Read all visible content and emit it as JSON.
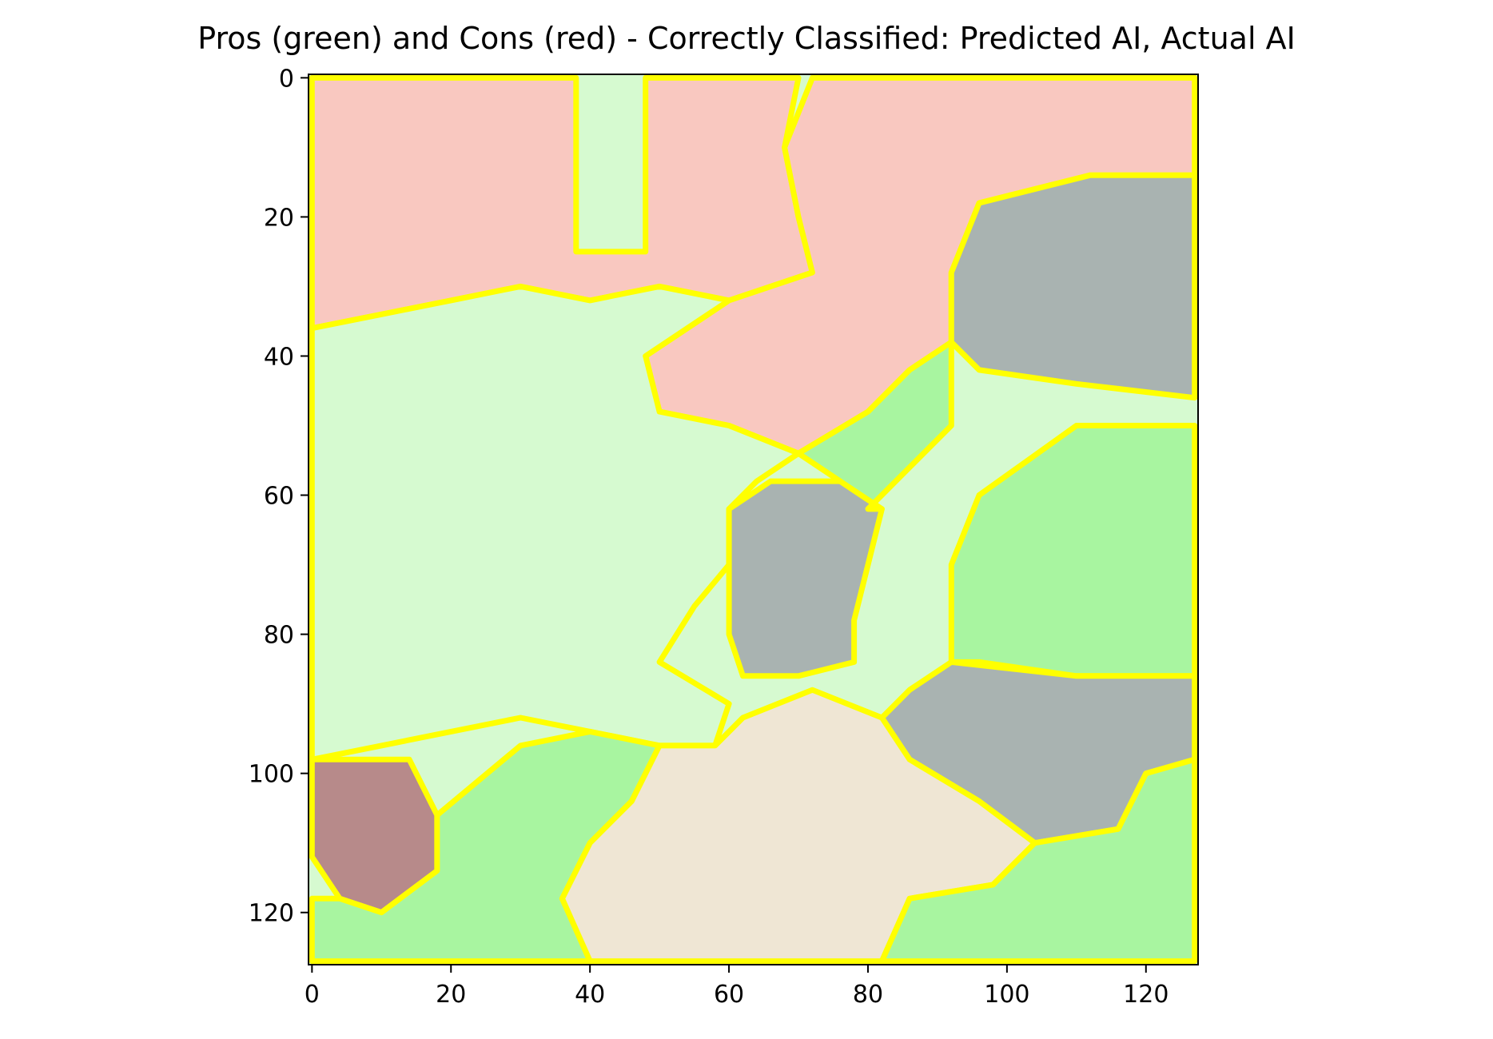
{
  "chart_data": {
    "type": "heatmap",
    "title": "Pros (green) and Cons (red) - Correctly Classified: Predicted AI, Actual AI",
    "xlabel": "",
    "ylabel": "",
    "xlim": [
      -0.5,
      127.5
    ],
    "ylim": [
      127.5,
      -0.5
    ],
    "x_ticks": [
      0,
      20,
      40,
      60,
      80,
      100,
      120
    ],
    "y_ticks": [
      0,
      20,
      40,
      60,
      80,
      100,
      120
    ],
    "grid": false,
    "colors": {
      "pros": "#a8f5a0",
      "pros_light": "#d6fad0",
      "cons": "#f9c8c0",
      "cons_light": "#fbe4d8",
      "boundary": "#ffff00",
      "gray_region": "#a9b3b1",
      "beige": "#efe6d4"
    },
    "regions": [
      {
        "label": "cons",
        "polygon": [
          [
            0,
            0
          ],
          [
            38,
            0
          ],
          [
            38,
            25
          ],
          [
            48,
            25
          ],
          [
            48,
            0
          ],
          [
            70,
            0
          ],
          [
            68,
            10
          ],
          [
            70,
            20
          ],
          [
            72,
            28
          ],
          [
            60,
            32
          ],
          [
            50,
            30
          ],
          [
            40,
            32
          ],
          [
            30,
            30
          ],
          [
            20,
            32
          ],
          [
            10,
            34
          ],
          [
            0,
            36
          ]
        ]
      },
      {
        "label": "cons",
        "polygon": [
          [
            72,
            0
          ],
          [
            127,
            0
          ],
          [
            127,
            14
          ],
          [
            112,
            14
          ],
          [
            96,
            18
          ],
          [
            92,
            28
          ],
          [
            92,
            38
          ],
          [
            86,
            42
          ],
          [
            80,
            48
          ],
          [
            70,
            54
          ],
          [
            60,
            50
          ],
          [
            50,
            48
          ],
          [
            48,
            40
          ],
          [
            54,
            36
          ],
          [
            60,
            32
          ],
          [
            72,
            28
          ],
          [
            70,
            20
          ],
          [
            68,
            10
          ]
        ]
      },
      {
        "label": "pros_light",
        "polygon": [
          [
            0,
            36
          ],
          [
            10,
            34
          ],
          [
            20,
            32
          ],
          [
            30,
            30
          ],
          [
            40,
            32
          ],
          [
            50,
            30
          ],
          [
            60,
            32
          ],
          [
            54,
            36
          ],
          [
            48,
            40
          ],
          [
            50,
            48
          ],
          [
            60,
            50
          ],
          [
            70,
            54
          ],
          [
            64,
            58
          ],
          [
            60,
            62
          ],
          [
            60,
            70
          ],
          [
            55,
            76
          ],
          [
            50,
            84
          ],
          [
            60,
            90
          ],
          [
            58,
            96
          ],
          [
            50,
            96
          ],
          [
            40,
            94
          ],
          [
            30,
            92
          ],
          [
            20,
            94
          ],
          [
            10,
            96
          ],
          [
            0,
            98
          ]
        ]
      },
      {
        "label": "gray",
        "polygon": [
          [
            60,
            62
          ],
          [
            66,
            58
          ],
          [
            76,
            58
          ],
          [
            82,
            62
          ],
          [
            80,
            70
          ],
          [
            78,
            78
          ],
          [
            78,
            84
          ],
          [
            70,
            86
          ],
          [
            62,
            86
          ],
          [
            60,
            80
          ],
          [
            60,
            70
          ]
        ]
      },
      {
        "label": "gray",
        "polygon": [
          [
            96,
            18
          ],
          [
            112,
            14
          ],
          [
            127,
            14
          ],
          [
            127,
            46
          ],
          [
            110,
            44
          ],
          [
            96,
            42
          ],
          [
            92,
            38
          ],
          [
            92,
            28
          ]
        ]
      },
      {
        "label": "pros",
        "polygon": [
          [
            80,
            48
          ],
          [
            86,
            42
          ],
          [
            92,
            38
          ],
          [
            92,
            50
          ],
          [
            86,
            56
          ],
          [
            80,
            62
          ],
          [
            82,
            62
          ],
          [
            76,
            58
          ],
          [
            70,
            54
          ]
        ]
      },
      {
        "label": "pros",
        "polygon": [
          [
            96,
            60
          ],
          [
            110,
            50
          ],
          [
            127,
            50
          ],
          [
            127,
            86
          ],
          [
            110,
            86
          ],
          [
            96,
            84
          ],
          [
            92,
            84
          ],
          [
            92,
            70
          ]
        ]
      },
      {
        "label": "gray",
        "polygon": [
          [
            92,
            84
          ],
          [
            110,
            86
          ],
          [
            127,
            86
          ],
          [
            127,
            98
          ],
          [
            120,
            100
          ],
          [
            116,
            108
          ],
          [
            104,
            110
          ],
          [
            96,
            104
          ],
          [
            86,
            98
          ],
          [
            82,
            92
          ],
          [
            86,
            88
          ]
        ]
      },
      {
        "label": "dark_red",
        "polygon": [
          [
            0,
            98
          ],
          [
            14,
            98
          ],
          [
            18,
            106
          ],
          [
            18,
            114
          ],
          [
            10,
            120
          ],
          [
            4,
            118
          ],
          [
            0,
            112
          ]
        ]
      },
      {
        "label": "pros",
        "polygon": [
          [
            18,
            106
          ],
          [
            30,
            96
          ],
          [
            40,
            94
          ],
          [
            50,
            96
          ],
          [
            46,
            104
          ],
          [
            40,
            110
          ],
          [
            36,
            118
          ],
          [
            40,
            127
          ],
          [
            0,
            127
          ],
          [
            0,
            118
          ],
          [
            4,
            118
          ],
          [
            10,
            120
          ],
          [
            18,
            114
          ]
        ]
      },
      {
        "label": "beige",
        "polygon": [
          [
            40,
            110
          ],
          [
            46,
            104
          ],
          [
            50,
            96
          ],
          [
            58,
            96
          ],
          [
            62,
            92
          ],
          [
            72,
            88
          ],
          [
            82,
            92
          ],
          [
            86,
            98
          ],
          [
            96,
            104
          ],
          [
            104,
            110
          ],
          [
            98,
            116
          ],
          [
            86,
            118
          ],
          [
            82,
            127
          ],
          [
            40,
            127
          ],
          [
            36,
            118
          ]
        ]
      },
      {
        "label": "pros",
        "polygon": [
          [
            104,
            110
          ],
          [
            116,
            108
          ],
          [
            120,
            100
          ],
          [
            127,
            98
          ],
          [
            127,
            127
          ],
          [
            82,
            127
          ],
          [
            86,
            118
          ],
          [
            98,
            116
          ]
        ]
      }
    ]
  }
}
